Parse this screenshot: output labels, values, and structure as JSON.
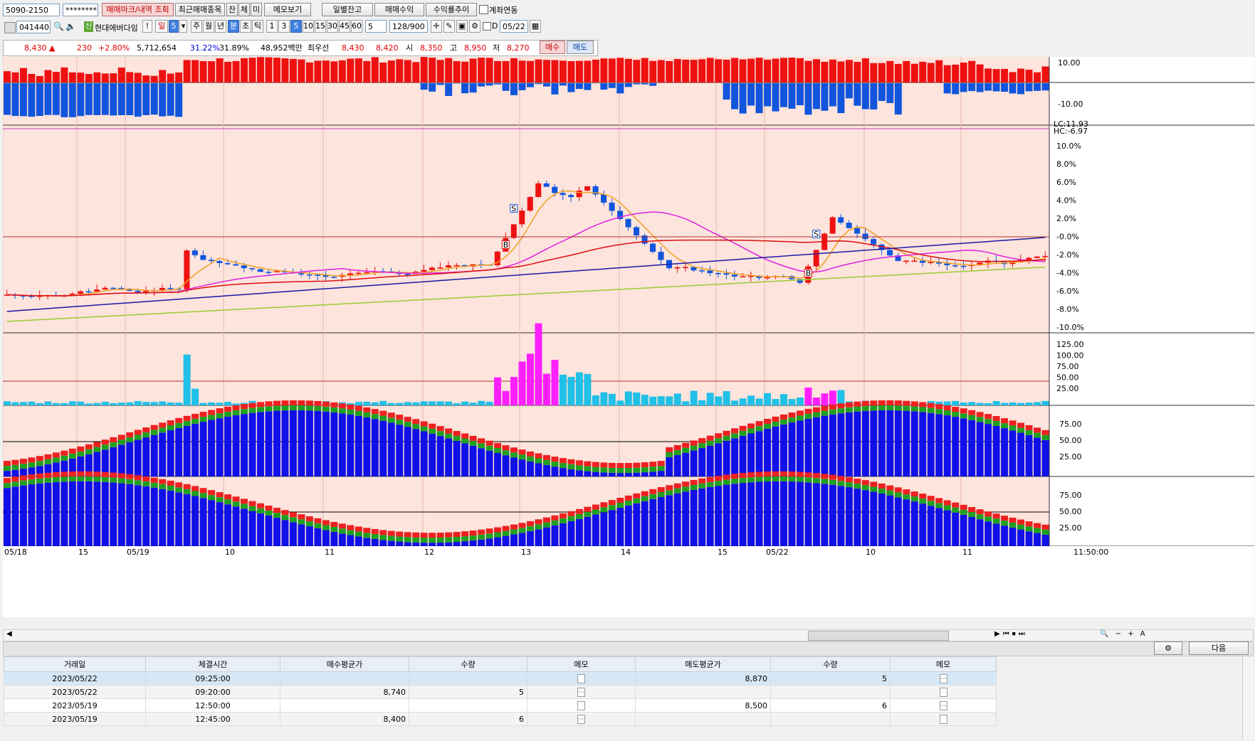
{
  "toolbar1": {
    "account": "5090-2150",
    "password": "********",
    "btn_trade_mark": "매매마크/내역 조회",
    "btn_recent": "최근매매종목",
    "btn_jan": "잔",
    "btn_che": "체",
    "btn_mi": "미",
    "btn_memo": "메모보기",
    "btn_daily_balance": "일별잔고",
    "btn_trade_profit": "매매수익",
    "btn_return_trend": "수익률추이",
    "chk_account_link": "계좌연동"
  },
  "toolbar2": {
    "code": "041440",
    "badge": "신",
    "stock_name": "현대에버다임",
    "period_day": "일",
    "period_day_num": "5",
    "period_week": "주",
    "period_month": "월",
    "period_year": "년",
    "period_min": "분",
    "period_sec": "초",
    "period_tick": "틱",
    "intervals": [
      "1",
      "3",
      "5",
      "10",
      "15",
      "30",
      "45",
      "60"
    ],
    "interval_sel": "5",
    "count": "128",
    "count_total": "/900",
    "date_prefix": "D",
    "date": "05/22"
  },
  "quote": {
    "price": "8,430",
    "arrow": "▲",
    "change": "230",
    "change_pct": "+2.80%",
    "volume": "5,712,654",
    "rate1": "31.22%",
    "rate2": "31.89%",
    "amount": "48,952백만",
    "best_label": "최우선",
    "best_ask": "8,430",
    "best_bid": "8,420",
    "open_label": "시",
    "open": "8,350",
    "high_label": "고",
    "high": "8,950",
    "low_label": "저",
    "low": "8,270",
    "buy_btn": "매수",
    "sell_btn": "매도"
  },
  "chart": {
    "hc_label": "HC:-6.97",
    "lc_label": "LC:11.93",
    "top_axis": [
      "10.00",
      "-10.00"
    ],
    "price_axis": [
      "10.0%",
      "8.0%",
      "6.0%",
      "4.0%",
      "2.0%",
      "-0.0%",
      "-2.0%",
      "-4.0%",
      "-6.0%",
      "-8.0%",
      "-10.0%"
    ],
    "vol_axis": [
      "125.00",
      "100.00",
      "75.00",
      "50.00",
      "25.00"
    ],
    "osc_axis": [
      "75.00",
      "50.00",
      "25.00"
    ],
    "osc2_axis": [
      "75.00",
      "50.00",
      "25.00"
    ],
    "x_labels": [
      "05/18",
      "15",
      "05/19",
      "10",
      "11",
      "12",
      "13",
      "14",
      "15",
      "05/22",
      "10",
      "11"
    ],
    "time": "11:50:00",
    "markers": [
      "S",
      "B",
      "S",
      "B"
    ],
    "colors": {
      "up": "#ee1111",
      "down": "#1155dd",
      "bg": "#fde4dc",
      "ma5": "#f0a020",
      "ma20": "#e020e0",
      "ma60": "#dd1111",
      "ma120": "#1a1aa0",
      "ma240": "#9acd32"
    }
  },
  "bottom_buttons": {
    "next": "다음"
  },
  "table": {
    "headers": [
      "거래일",
      "체결시간",
      "매수평균가",
      "수량",
      "메모",
      "매도평균가",
      "수량",
      "메모"
    ],
    "rows": [
      {
        "date": "2023/05/22",
        "time": "09:25:00",
        "buy_avg": "",
        "buy_qty": "",
        "sell_avg": "8,870",
        "sell_qty": "5"
      },
      {
        "date": "2023/05/22",
        "time": "09:20:00",
        "buy_avg": "8,740",
        "buy_qty": "5",
        "sell_avg": "",
        "sell_qty": ""
      },
      {
        "date": "2023/05/19",
        "time": "12:50:00",
        "buy_avg": "",
        "buy_qty": "",
        "sell_avg": "8,500",
        "sell_qty": "6"
      },
      {
        "date": "2023/05/19",
        "time": "12:45:00",
        "buy_avg": "8,400",
        "buy_qty": "6",
        "sell_avg": "",
        "sell_qty": ""
      }
    ]
  }
}
